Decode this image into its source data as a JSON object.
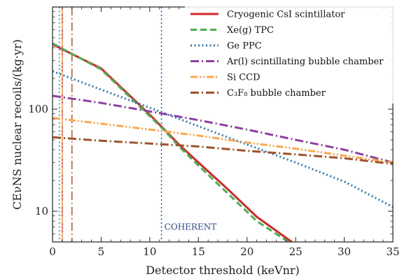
{
  "chart_data": {
    "type": "line",
    "xlabel": "Detector threshold (keVnr)",
    "ylabel": "CEνNS nuclear recoils/(kg·yr)",
    "xlim": [
      0,
      35
    ],
    "ylim": [
      5,
      1000
    ],
    "yscale": "log",
    "x_ticks": [
      0,
      5,
      10,
      15,
      20,
      25,
      30,
      35
    ],
    "y_tick_labels": [
      "10",
      "100"
    ],
    "y_tick_values": [
      10,
      100
    ],
    "legend_position": "top-right",
    "grid": false,
    "series": [
      {
        "name": "Cryogenic CsI scintillator",
        "color": "#d62728",
        "dash": "solid",
        "x": [
          0,
          5,
          10,
          11.5,
          13,
          15,
          18,
          21,
          24.6
        ],
        "y": [
          430,
          250,
          88,
          63,
          45,
          30,
          16.5,
          8.8,
          5
        ]
      },
      {
        "name": "Xe(g) TPC",
        "color": "#4caf50",
        "dash": "dash",
        "x": [
          0,
          5,
          10,
          11.5,
          13,
          15,
          18,
          21,
          24.4
        ],
        "y": [
          440,
          245,
          85,
          62,
          43,
          28,
          15,
          8,
          4.9
        ]
      },
      {
        "name": "Ge PPC",
        "color": "#2e7bbf",
        "dash": "dot",
        "x": [
          0,
          5,
          10,
          15,
          20,
          25,
          30,
          35
        ],
        "y": [
          235,
          155,
          103,
          68,
          45,
          30,
          19.5,
          11
        ]
      },
      {
        "name": "Ar(l) scintillating bubble chamber",
        "color": "#8e3fa0",
        "dash": "dashdot",
        "x": [
          0,
          5,
          10,
          15,
          20,
          25,
          30,
          35
        ],
        "y": [
          135,
          115,
          95,
          78,
          63,
          50,
          40,
          30
        ]
      },
      {
        "name": "Si CCD",
        "color": "#ffa64d",
        "dash": "dashdotdot",
        "x": [
          0,
          5,
          10,
          15,
          20,
          25,
          30,
          35
        ],
        "y": [
          82,
          72,
          63,
          55,
          47,
          41,
          35,
          30
        ]
      },
      {
        "name": "C3F8 bubble chamber",
        "color": "#a0522d",
        "dash": "dashdot",
        "x": [
          0,
          5,
          10,
          15,
          20,
          25,
          30,
          35
        ],
        "y": [
          53,
          49,
          46,
          43,
          39,
          36,
          33,
          29
        ]
      }
    ],
    "legend_labels": [
      "Cryogenic CsI scintillator",
      "Xe(g) TPC",
      "Ge PPC",
      "Ar(l) scintillating bubble chamber",
      "Si CCD",
      "C₃F₈ bubble chamber"
    ],
    "threshold_lines": [
      {
        "x": 0.7,
        "color": "#2e7bbf",
        "dash": "dot"
      },
      {
        "x": 1.0,
        "color": "#d62728",
        "dash": "solid"
      },
      {
        "x": 1.0,
        "color": "#ffa64d",
        "dash": "dashdotdot"
      },
      {
        "x": 2.0,
        "color": "#a0522d",
        "dash": "dashdot"
      },
      {
        "x": 11.2,
        "color": "#1f3f8f",
        "dash": "dot"
      }
    ],
    "annotations": [
      {
        "text": "COHERENT",
        "x": 11.5,
        "y": 6.6,
        "color": "#2a4a9a"
      }
    ]
  }
}
